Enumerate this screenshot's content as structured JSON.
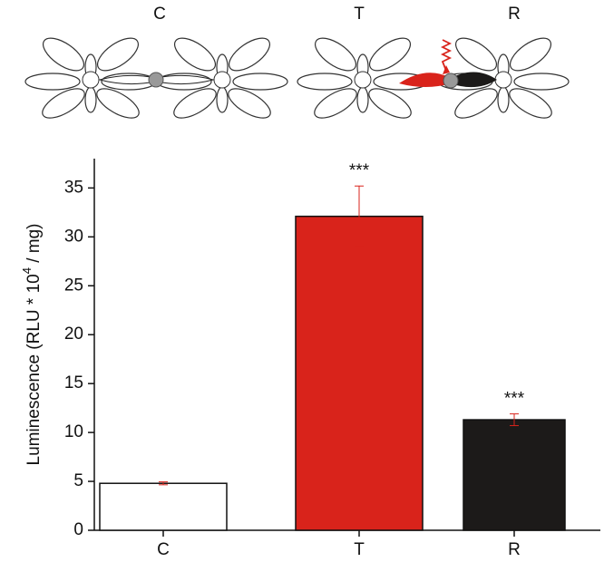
{
  "chart_data": {
    "type": "bar",
    "y_label": [
      "Luminescence (RLU * 10",
      "4",
      " / mg)"
    ],
    "categories": [
      "C",
      "T",
      "R"
    ],
    "values": [
      4.8,
      32.1,
      11.3
    ],
    "errors": [
      0.15,
      3.1,
      0.6
    ],
    "significance": [
      null,
      "***",
      "***"
    ],
    "colors": [
      "#ffffff",
      "#d9231b",
      "#1c1a19"
    ],
    "significance_color": "#d9231b",
    "ylim": [
      0,
      38
    ],
    "yticks": [
      0,
      5,
      10,
      15,
      20,
      25,
      30,
      35
    ]
  },
  "illustration": {
    "labels": [
      "C",
      "T",
      "R"
    ]
  }
}
